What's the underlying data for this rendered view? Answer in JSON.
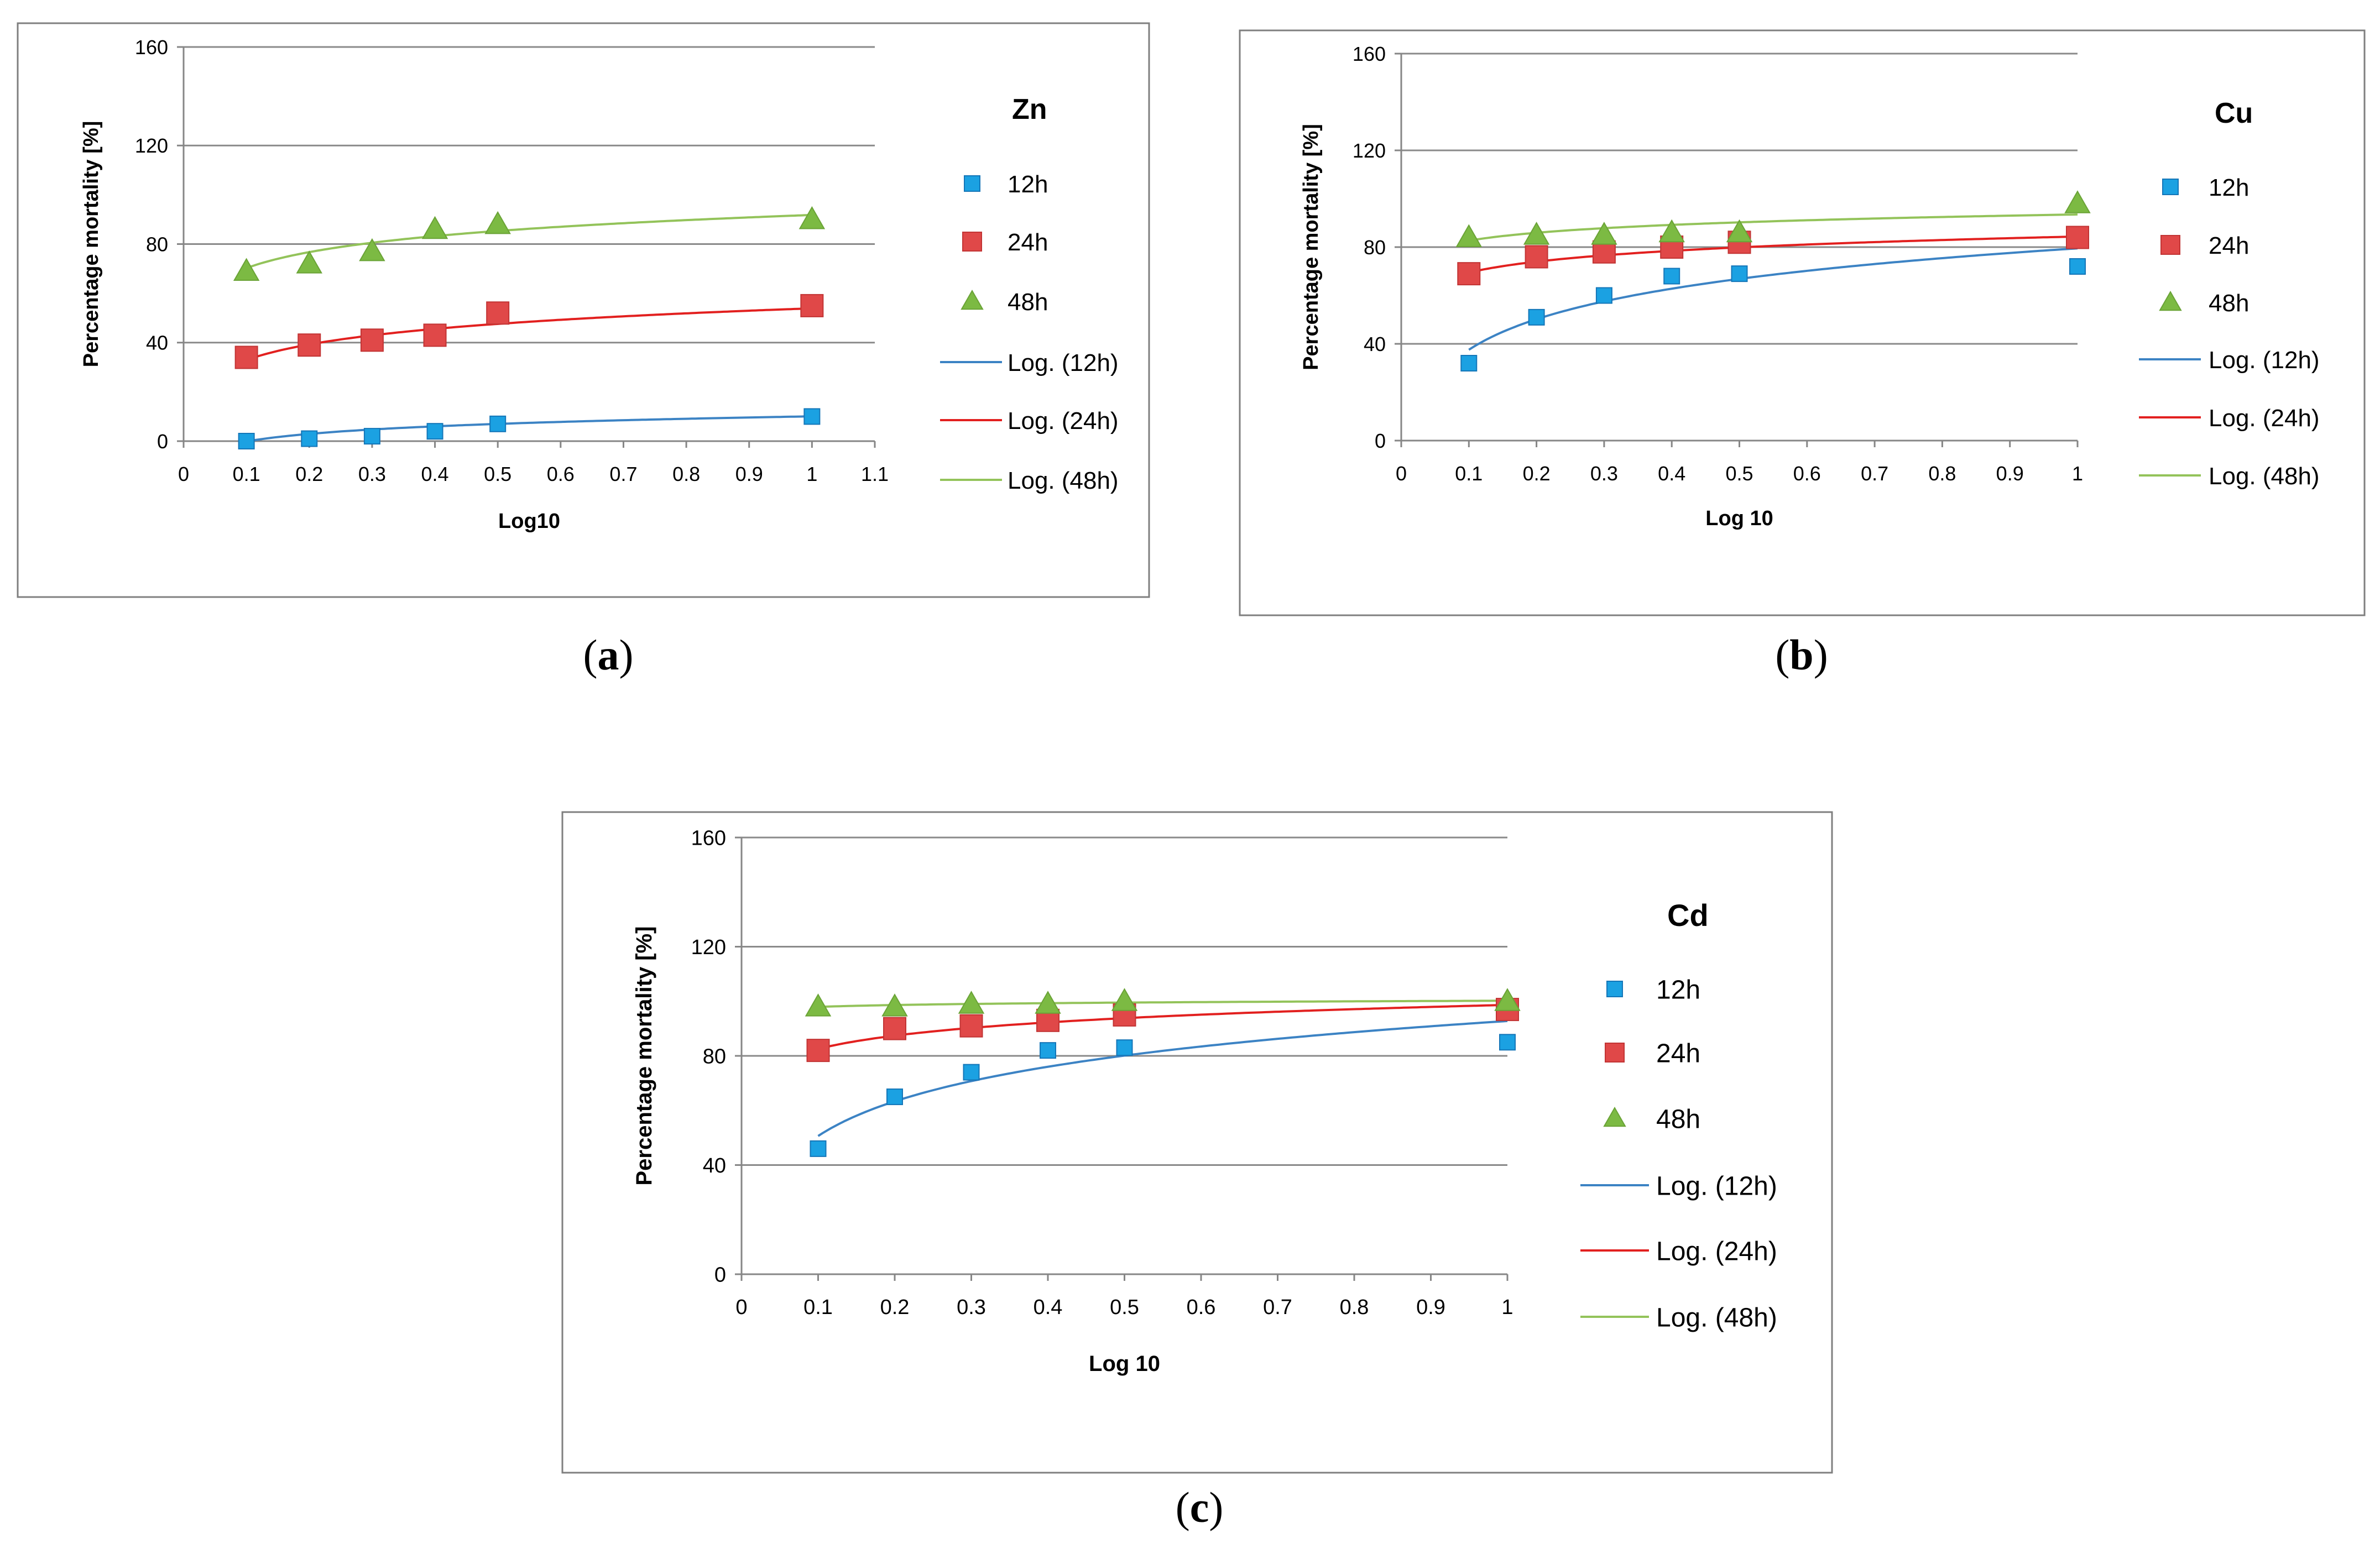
{
  "chart_data": [
    {
      "type": "scatter",
      "title": "Zn",
      "caption": "a",
      "xlabel": "Log10",
      "ylabel": "Percentage mortality [%]",
      "xlim": [
        0,
        1.1
      ],
      "ylim": [
        0,
        160
      ],
      "xticks": [
        "0",
        "0.1",
        "0.2",
        "0.3",
        "0.4",
        "0.5",
        "0.6",
        "0.7",
        "0.8",
        "0.9",
        "1",
        "1.1"
      ],
      "yticks": [
        "0",
        "40",
        "80",
        "120",
        "160"
      ],
      "grid": true,
      "legend_position": "right",
      "x": [
        0.1,
        0.2,
        0.3,
        0.4,
        0.5,
        1.0
      ],
      "series": [
        {
          "name": "12h",
          "marker": "square",
          "color": "#1ba1e2",
          "values": [
            0,
            1,
            2,
            4,
            7,
            10
          ]
        },
        {
          "name": "24h",
          "marker": "square",
          "color": "#e04848",
          "values": [
            34,
            39,
            41,
            43,
            52,
            55
          ]
        },
        {
          "name": "48h",
          "marker": "triangle",
          "color": "#7cba43",
          "values": [
            69,
            72,
            77,
            86,
            88,
            90
          ]
        }
      ],
      "trendlines": [
        {
          "name": "Log. (12h)",
          "color": "#3c83c4",
          "a": 10.07,
          "b": 4.43
        },
        {
          "name": "Log. (24h)",
          "color": "#e2201f",
          "a": 53.91,
          "b": 9.11
        },
        {
          "name": "Log. (48h)",
          "color": "#93c35a",
          "a": 91.81,
          "b": 9.37
        }
      ]
    },
    {
      "type": "scatter",
      "title": "Cu",
      "caption": "b",
      "xlabel": "Log 10",
      "ylabel": "Percentage mortality [%]",
      "xlim": [
        0,
        1
      ],
      "ylim": [
        0,
        160
      ],
      "xticks": [
        "0",
        "0.1",
        "0.2",
        "0.3",
        "0.4",
        "0.5",
        "0.6",
        "0.7",
        "0.8",
        "0.9",
        "1"
      ],
      "yticks": [
        "0",
        "40",
        "80",
        "120",
        "160"
      ],
      "grid": true,
      "legend_position": "right",
      "x": [
        0.1,
        0.2,
        0.3,
        0.4,
        0.5,
        1.0
      ],
      "series": [
        {
          "name": "12h",
          "marker": "square",
          "color": "#1ba1e2",
          "values": [
            32,
            51,
            60,
            68,
            69,
            72
          ]
        },
        {
          "name": "24h",
          "marker": "square",
          "color": "#e04848",
          "values": [
            69,
            76,
            78,
            80,
            82,
            84
          ]
        },
        {
          "name": "48h",
          "marker": "triangle",
          "color": "#7cba43",
          "values": [
            84,
            85,
            85,
            86,
            86,
            98
          ]
        }
      ],
      "trendlines": [
        {
          "name": "Log. (12h)",
          "color": "#3c83c4",
          "a": 79.49,
          "b": 18.21
        },
        {
          "name": "Log. (24h)",
          "color": "#e2201f",
          "a": 84.37,
          "b": 6.46
        },
        {
          "name": "Log. (48h)",
          "color": "#93c35a",
          "a": 93.5,
          "b": 4.71
        }
      ]
    },
    {
      "type": "scatter",
      "title": "Cd",
      "caption": "c",
      "xlabel": "Log 10",
      "ylabel": "Percentage mortality [%]",
      "xlim": [
        0,
        1
      ],
      "ylim": [
        0,
        160
      ],
      "xticks": [
        "0",
        "0.1",
        "0.2",
        "0.3",
        "0.4",
        "0.5",
        "0.6",
        "0.7",
        "0.8",
        "0.9",
        "1"
      ],
      "yticks": [
        "0",
        "40",
        "80",
        "120",
        "160"
      ],
      "grid": true,
      "legend_position": "right",
      "x": [
        0.1,
        0.2,
        0.3,
        0.4,
        0.5,
        1.0
      ],
      "series": [
        {
          "name": "12h",
          "marker": "square",
          "color": "#1ba1e2",
          "values": [
            46,
            65,
            74,
            82,
            83,
            85
          ]
        },
        {
          "name": "24h",
          "marker": "square",
          "color": "#e04848",
          "values": [
            82,
            90,
            91,
            93,
            95,
            97
          ]
        },
        {
          "name": "48h",
          "marker": "triangle",
          "color": "#7cba43",
          "values": [
            98,
            98,
            99,
            99,
            100,
            100
          ]
        }
      ],
      "trendlines": [
        {
          "name": "Log. (12h)",
          "color": "#3c83c4",
          "a": 92.77,
          "b": 18.29
        },
        {
          "name": "Log. (24h)",
          "color": "#e2201f",
          "a": 98.67,
          "b": 7.0
        },
        {
          "name": "Log. (48h)",
          "color": "#93c35a",
          "a": 100.2,
          "b": 0.98
        }
      ]
    }
  ]
}
